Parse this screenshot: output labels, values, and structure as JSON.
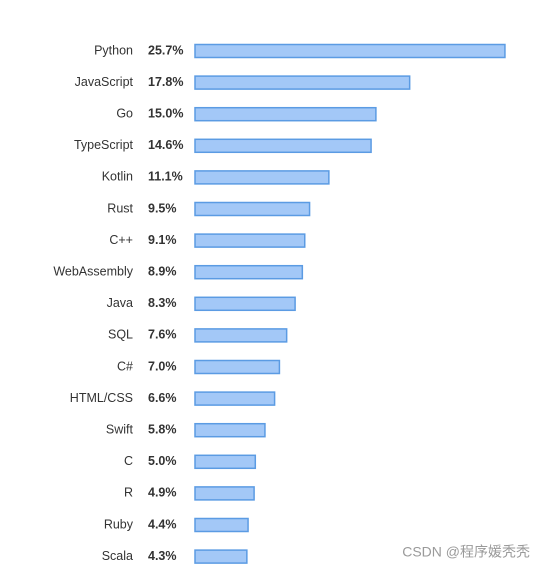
{
  "chart_data": {
    "type": "bar",
    "orientation": "horizontal",
    "categories": [
      "Python",
      "JavaScript",
      "Go",
      "TypeScript",
      "Kotlin",
      "Rust",
      "C++",
      "WebAssembly",
      "Java",
      "SQL",
      "C#",
      "HTML/CSS",
      "Swift",
      "C",
      "R",
      "Ruby",
      "Scala"
    ],
    "values": [
      25.7,
      17.8,
      15.0,
      14.6,
      11.1,
      9.5,
      9.1,
      8.9,
      8.3,
      7.6,
      7.0,
      6.6,
      5.8,
      5.0,
      4.9,
      4.4,
      4.3
    ],
    "value_labels": [
      "25.7%",
      "17.8%",
      "15.0%",
      "14.6%",
      "11.1%",
      "9.5%",
      "9.1%",
      "8.9%",
      "8.3%",
      "7.6%",
      "7.0%",
      "6.6%",
      "5.8%",
      "5.0%",
      "4.9%",
      "4.4%",
      "4.3%"
    ],
    "color": "#a3c8f7",
    "edge_color": "#5b9be3",
    "watermark": "CSDN @程序媛秃秃"
  }
}
